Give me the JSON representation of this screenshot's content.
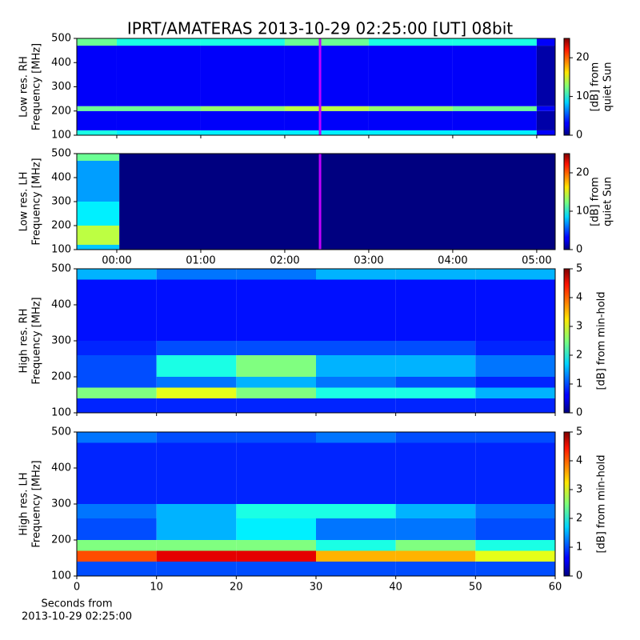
{
  "title": "IPRT/AMATERAS 2013-10-29 02:25:00 [UT]   08bit",
  "chart_data": [
    {
      "type": "heatmap",
      "ylabel": [
        "Low res. RH",
        "Frequency [MHz]"
      ],
      "xlim": [
        -0.476,
        5.22
      ],
      "xticks": [
        0,
        1,
        2,
        3,
        4,
        5
      ],
      "ylim": [
        100,
        500
      ],
      "yticks": [
        100,
        200,
        300,
        400,
        500
      ],
      "x_edges": [
        -0.476,
        0,
        1,
        2,
        3,
        4,
        5,
        5.22
      ],
      "y_edges": [
        100,
        120,
        200,
        220,
        300,
        470,
        500
      ],
      "z": [
        [
          10,
          9,
          9,
          9,
          9,
          9,
          3
        ],
        [
          3,
          3,
          3,
          3,
          3,
          3,
          1
        ],
        [
          12,
          12,
          13,
          14,
          13,
          12,
          3
        ],
        [
          3,
          3,
          3,
          3,
          3,
          3,
          1
        ],
        [
          3,
          3,
          3,
          3,
          3,
          3,
          1
        ],
        [
          12,
          10,
          10,
          12,
          10,
          10,
          3
        ]
      ],
      "zlim": [
        0,
        25
      ],
      "zticks": [
        0,
        10,
        20
      ],
      "colorbar_label": [
        "[dB] from",
        "quiet Sun"
      ],
      "colormap": "jet",
      "marker": {
        "x": 2.42,
        "color": "#c000ff"
      }
    },
    {
      "type": "heatmap",
      "ylabel": [
        "Low res. LH",
        "Frequency [MHz]"
      ],
      "xlim": [
        -0.476,
        5.22
      ],
      "xticks": [
        {
          "value": 0,
          "label": "00:00"
        },
        {
          "value": 1,
          "label": "01:00"
        },
        {
          "value": 2,
          "label": "02:00"
        },
        {
          "value": 3,
          "label": "03:00"
        },
        {
          "value": 4,
          "label": "04:00"
        },
        {
          "value": 5,
          "label": "05:00"
        }
      ],
      "ylim": [
        100,
        500
      ],
      "yticks": [
        100,
        200,
        300,
        400,
        500
      ],
      "x_edges": [
        -0.476,
        0.03,
        5.22
      ],
      "y_edges": [
        100,
        120,
        200,
        220,
        300,
        470,
        500
      ],
      "z": [
        [
          8,
          0
        ],
        [
          14,
          0
        ],
        [
          9,
          0
        ],
        [
          9,
          0
        ],
        [
          7,
          0
        ],
        [
          12,
          0
        ]
      ],
      "zlim": [
        0,
        25
      ],
      "zticks": [
        0,
        10,
        20
      ],
      "colorbar_label": [
        "[dB] from",
        "quiet Sun"
      ],
      "colormap": "jet",
      "marker": {
        "x": 2.42,
        "color": "#c000ff"
      }
    },
    {
      "type": "heatmap",
      "ylabel": [
        "High res. RH",
        "Frequency [MHz]"
      ],
      "xlim": [
        0,
        60
      ],
      "xticks": [
        0,
        10,
        20,
        30,
        40,
        50,
        60
      ],
      "ylim": [
        100,
        500
      ],
      "yticks": [
        100,
        200,
        300,
        400,
        500
      ],
      "x_edges": [
        0,
        10,
        20,
        30,
        40,
        50,
        60
      ],
      "y_edges": [
        100,
        140,
        170,
        200,
        260,
        300,
        470,
        500
      ],
      "z": [
        [
          0.8,
          0.8,
          0.8,
          0.8,
          0.8,
          0.8
        ],
        [
          2.5,
          3,
          2.5,
          2,
          2,
          1.5
        ],
        [
          1,
          1.2,
          1.5,
          1.2,
          1,
          0.8
        ],
        [
          1,
          2,
          2.5,
          1.5,
          1.5,
          1.2
        ],
        [
          0.8,
          1,
          1,
          1,
          1,
          0.8
        ],
        [
          0.7,
          0.7,
          0.7,
          0.7,
          0.7,
          0.7
        ],
        [
          1.5,
          1.2,
          1.2,
          1.5,
          1.5,
          1.5
        ]
      ],
      "zlim": [
        0,
        5
      ],
      "zticks": [
        0,
        1,
        2,
        3,
        4,
        5
      ],
      "colorbar_label": [
        "[dB] from min-hold"
      ],
      "colormap": "jet"
    },
    {
      "type": "heatmap",
      "ylabel": [
        "High res. LH",
        "Frequency [MHz]"
      ],
      "xlabel": [
        "Seconds from",
        "2013-10-29 02:25:00"
      ],
      "xlim": [
        0,
        60
      ],
      "xticks": [
        0,
        10,
        20,
        30,
        40,
        50,
        60
      ],
      "ylim": [
        100,
        500
      ],
      "yticks": [
        100,
        200,
        300,
        400,
        500
      ],
      "x_edges": [
        0,
        10,
        20,
        30,
        40,
        50,
        60
      ],
      "y_edges": [
        100,
        140,
        170,
        200,
        260,
        300,
        470,
        500
      ],
      "z": [
        [
          1,
          1,
          1,
          1,
          1,
          1
        ],
        [
          4,
          4.5,
          4.5,
          3.5,
          3.5,
          3
        ],
        [
          2.5,
          2.5,
          2.5,
          2,
          2.5,
          2
        ],
        [
          1,
          1.5,
          1.8,
          1.2,
          1.2,
          1
        ],
        [
          1.2,
          1.5,
          2,
          2,
          1.5,
          1.2
        ],
        [
          0.8,
          0.8,
          0.8,
          0.8,
          0.8,
          0.8
        ],
        [
          1.2,
          1,
          1,
          1.2,
          1,
          1
        ]
      ],
      "zlim": [
        0,
        5
      ],
      "zticks": [
        0,
        1,
        2,
        3,
        4,
        5
      ],
      "colorbar_label": [
        "[dB] from min-hold"
      ],
      "colormap": "jet"
    }
  ]
}
